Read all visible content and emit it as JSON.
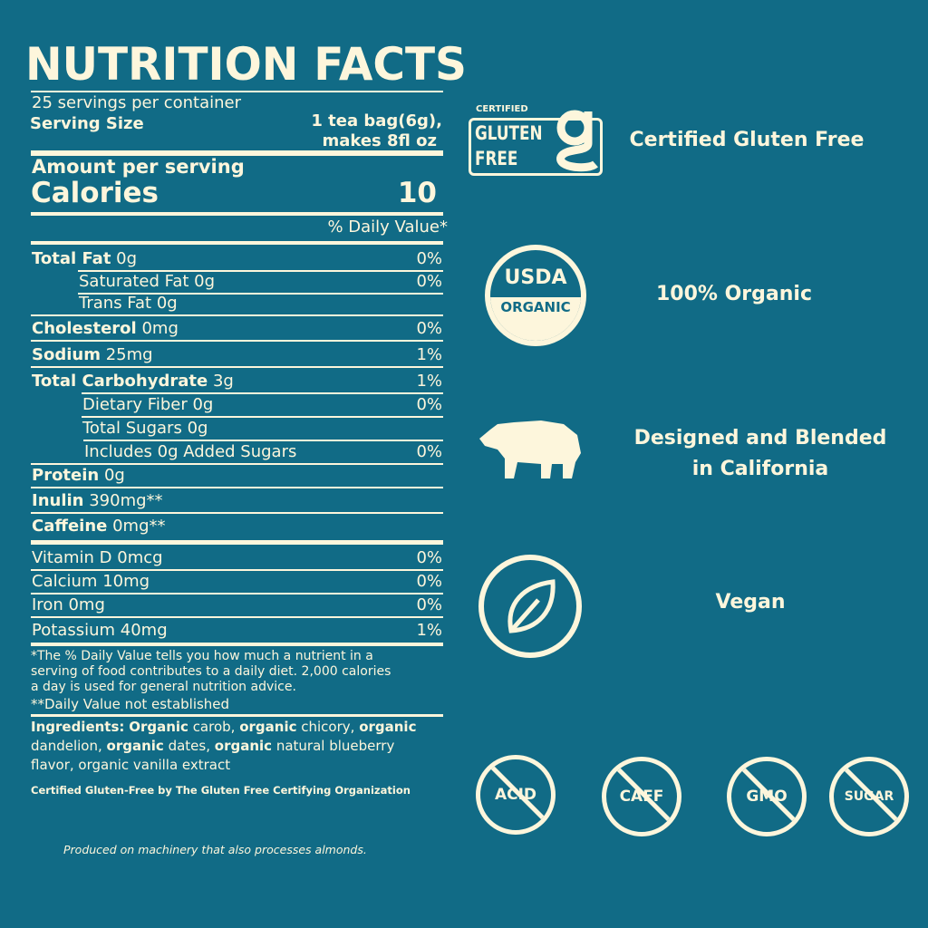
{
  "label": {
    "title": "NUTRITION FACTS",
    "servings": "25 servings per container",
    "serving_size_label": "Serving Size",
    "serving_size_value_1": "1 tea bag(6g),",
    "serving_size_value_2": "makes 8fl oz",
    "amount_per_serving": "Amount per serving",
    "calories_label": "Calories",
    "calories_value": "10",
    "daily_value_header": "% Daily Value*",
    "nutrients": [
      {
        "name": "Total Fat",
        "amount": "0g",
        "dv": "0%"
      },
      {
        "name": "Saturated Fat",
        "amount": "0g",
        "dv": "0%"
      },
      {
        "name": "Trans Fat",
        "amount": "0g",
        "dv": ""
      },
      {
        "name": "Cholesterol",
        "amount": "0mg",
        "dv": "0%"
      },
      {
        "name": "Sodium",
        "amount": "25mg",
        "dv": "1%"
      },
      {
        "name": "Total Carbohydrate",
        "amount": "3g",
        "dv": "1%"
      },
      {
        "name": "Dietary Fiber",
        "amount": "0g",
        "dv": "0%"
      },
      {
        "name": "Total Sugars",
        "amount": "0g",
        "dv": ""
      },
      {
        "name": "Includes 0g Added Sugars",
        "amount": "",
        "dv": "0%"
      },
      {
        "name": "Protein",
        "amount": "0g",
        "dv": ""
      },
      {
        "name": "Inulin",
        "amount": "390mg**",
        "dv": ""
      },
      {
        "name": "Caffeine",
        "amount": "0mg**",
        "dv": ""
      },
      {
        "name": "Vitamin D",
        "amount": "0mcg",
        "dv": "0%"
      },
      {
        "name": "Calcium",
        "amount": "10mg",
        "dv": "0%"
      },
      {
        "name": "Iron",
        "amount": "0mg",
        "dv": "0%"
      },
      {
        "name": "Potassium",
        "amount": "40mg",
        "dv": "1%"
      }
    ],
    "footnote_1": "*The % Daily Value tells you how much a nutrient in a serving of food contributes to a daily diet. 2,000 calories a day is used for general nutrition advice.",
    "footnote_2": "**Daily Value not established",
    "ingredients_label": "Ingredients:",
    "ingredients": [
      {
        "text": "Organic",
        "bold": true
      },
      {
        "text": " carob, ",
        "bold": false
      },
      {
        "text": "organic",
        "bold": true
      },
      {
        "text": " chicory, ",
        "bold": false
      },
      {
        "text": "organic",
        "bold": true
      },
      {
        "text": " dandelion, ",
        "bold": false
      },
      {
        "text": "organic",
        "bold": true
      },
      {
        "text": " dates, ",
        "bold": false
      },
      {
        "text": "organic",
        "bold": true
      },
      {
        "text": " natural blueberry flavor, organic vanilla extract",
        "bold": false
      }
    ],
    "certification": "Certified Gluten-Free by The Gluten Free Certifying Organization",
    "allergen": "Produced on machinery that also processes almonds."
  },
  "badges": {
    "gluten_logo": {
      "top": "CERTIFIED",
      "line1": "GLUTEN",
      "line2": "FREE"
    },
    "usda_logo": {
      "line1": "USDA",
      "line2": "ORGANIC"
    },
    "gluten_free": "Certified Gluten Free",
    "organic": "100% Organic",
    "california_1": "Designed and Blended",
    "california_2": "in California",
    "vegan": "Vegan",
    "free_of": [
      "ACID",
      "CAFF",
      "GMO",
      "SUGAR"
    ]
  },
  "colors": {
    "background": "#116b86",
    "text": "#fdf6dc"
  }
}
